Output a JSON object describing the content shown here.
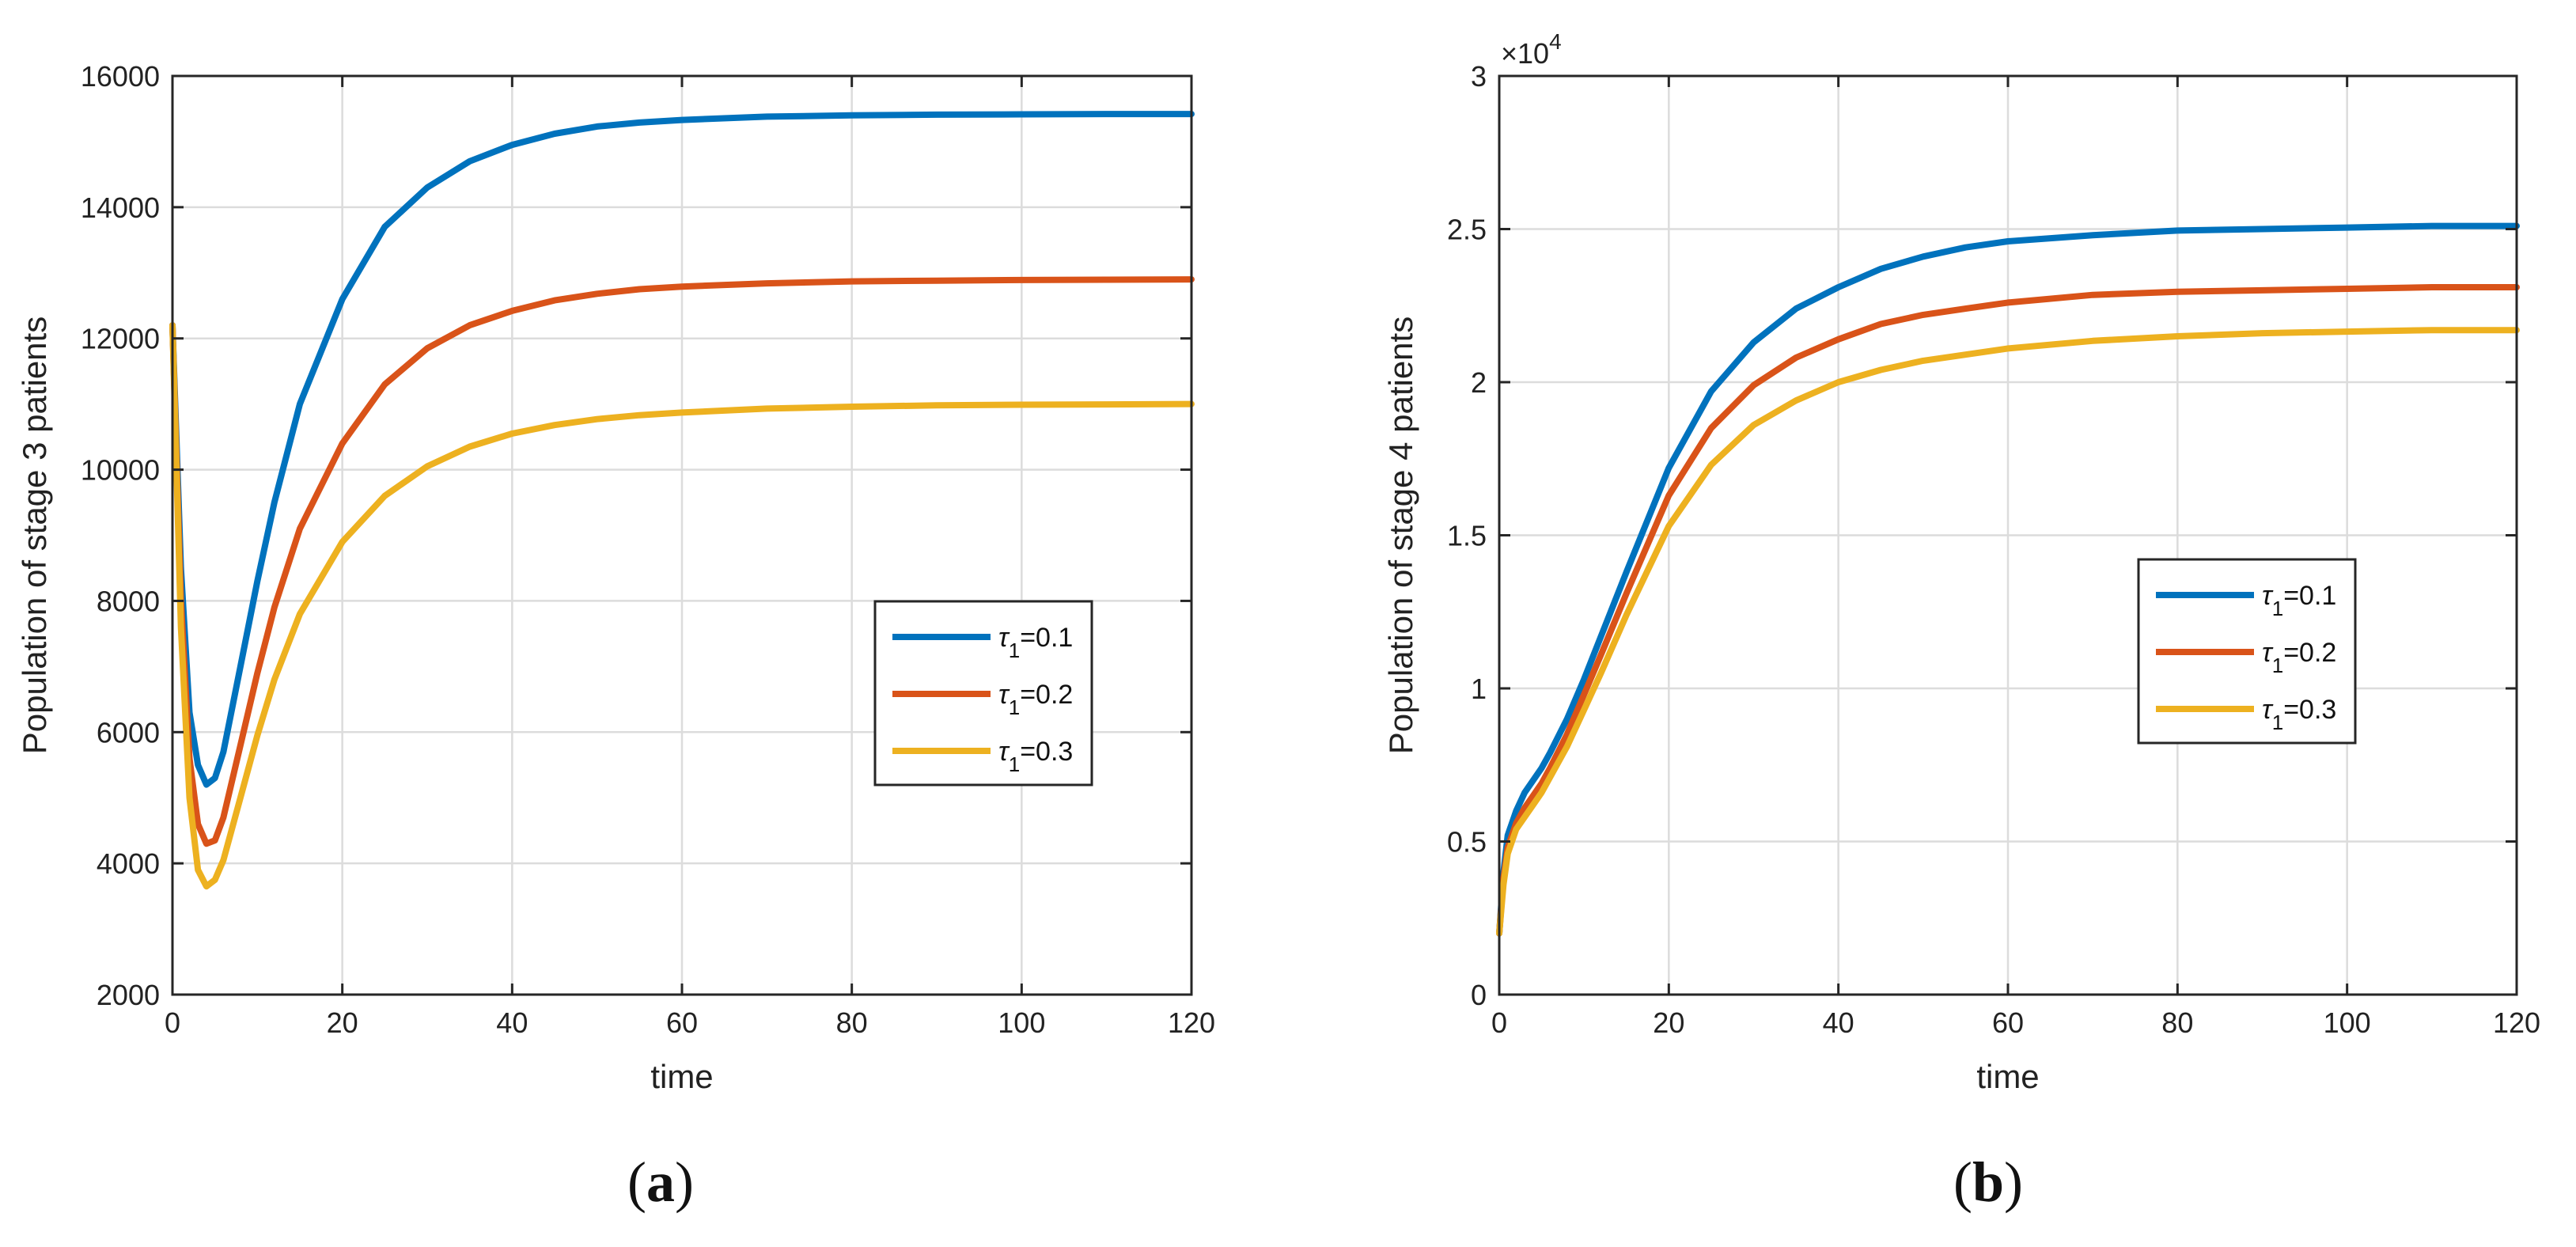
{
  "chart_data": [
    {
      "type": "line",
      "panel_caption": "a",
      "xlabel": "time",
      "ylabel": "Population of stage 3 patients",
      "xlim": [
        0,
        120
      ],
      "ylim": [
        2000,
        16000
      ],
      "xticks": [
        0,
        20,
        40,
        60,
        80,
        100,
        120
      ],
      "yticks": [
        2000,
        4000,
        6000,
        8000,
        10000,
        12000,
        14000,
        16000
      ],
      "grid": true,
      "legend_position": "center-right",
      "series": [
        {
          "name": "τ1=0.1",
          "symbol": "τ",
          "subscript": "1",
          "value_text": "=0.1",
          "color": "#0072BD",
          "x": [
            0,
            1,
            2,
            3,
            4,
            5,
            6,
            8,
            10,
            12,
            15,
            20,
            25,
            30,
            35,
            40,
            45,
            50,
            55,
            60,
            70,
            80,
            90,
            100,
            110,
            120
          ],
          "y": [
            12200,
            8500,
            6300,
            5500,
            5200,
            5300,
            5700,
            7000,
            8300,
            9500,
            11000,
            12600,
            13700,
            14300,
            14700,
            14950,
            15120,
            15230,
            15290,
            15330,
            15380,
            15400,
            15410,
            15415,
            15420,
            15420
          ]
        },
        {
          "name": "τ1=0.2",
          "symbol": "τ",
          "subscript": "1",
          "value_text": "=0.2",
          "color": "#D95319",
          "x": [
            0,
            1,
            2,
            3,
            4,
            5,
            6,
            8,
            10,
            12,
            15,
            20,
            25,
            30,
            35,
            40,
            45,
            50,
            55,
            60,
            70,
            80,
            90,
            100,
            110,
            120
          ],
          "y": [
            12200,
            8000,
            5600,
            4600,
            4300,
            4350,
            4700,
            5800,
            6900,
            7900,
            9100,
            10400,
            11300,
            11850,
            12200,
            12420,
            12580,
            12680,
            12750,
            12790,
            12840,
            12870,
            12880,
            12890,
            12895,
            12900
          ]
        },
        {
          "name": "τ1=0.3",
          "symbol": "τ",
          "subscript": "1",
          "value_text": "=0.3",
          "color": "#EDB120",
          "x": [
            0,
            1,
            2,
            3,
            4,
            5,
            6,
            8,
            10,
            12,
            15,
            20,
            25,
            30,
            35,
            40,
            45,
            50,
            55,
            60,
            70,
            80,
            90,
            100,
            110,
            120
          ],
          "y": [
            12200,
            7600,
            5000,
            3900,
            3650,
            3750,
            4050,
            5000,
            5950,
            6800,
            7800,
            8900,
            9600,
            10050,
            10350,
            10550,
            10680,
            10770,
            10830,
            10870,
            10930,
            10960,
            10980,
            10990,
            10995,
            11000
          ]
        }
      ]
    },
    {
      "type": "line",
      "panel_caption": "b",
      "xlabel": "time",
      "ylabel": "Population of stage 4 patients",
      "axis_multiplier": "×10",
      "axis_multiplier_exponent": "4",
      "xlim": [
        0,
        120
      ],
      "ylim": [
        0,
        3
      ],
      "xticks": [
        0,
        20,
        40,
        60,
        80,
        100,
        120
      ],
      "yticks": [
        0,
        0.5,
        1,
        1.5,
        2,
        2.5,
        3
      ],
      "grid": true,
      "legend_position": "center-right",
      "series": [
        {
          "name": "τ1=0.1",
          "symbol": "τ",
          "subscript": "1",
          "value_text": "=0.1",
          "color": "#0072BD",
          "x": [
            0,
            0.5,
            1,
            2,
            3,
            4,
            5,
            6,
            8,
            10,
            12,
            15,
            20,
            25,
            30,
            35,
            40,
            45,
            50,
            55,
            60,
            70,
            80,
            90,
            100,
            110,
            120
          ],
          "y": [
            0.2,
            0.4,
            0.52,
            0.6,
            0.66,
            0.7,
            0.74,
            0.79,
            0.9,
            1.03,
            1.17,
            1.38,
            1.72,
            1.97,
            2.13,
            2.24,
            2.31,
            2.37,
            2.41,
            2.44,
            2.46,
            2.48,
            2.495,
            2.5,
            2.505,
            2.51,
            2.51
          ]
        },
        {
          "name": "τ1=0.2",
          "symbol": "τ",
          "subscript": "1",
          "value_text": "=0.2",
          "color": "#D95319",
          "x": [
            0,
            0.5,
            1,
            2,
            3,
            4,
            5,
            6,
            8,
            10,
            12,
            15,
            20,
            25,
            30,
            35,
            40,
            45,
            50,
            55,
            60,
            70,
            80,
            90,
            100,
            110,
            120
          ],
          "y": [
            0.2,
            0.38,
            0.48,
            0.56,
            0.61,
            0.65,
            0.69,
            0.74,
            0.85,
            0.98,
            1.11,
            1.31,
            1.63,
            1.85,
            1.99,
            2.08,
            2.14,
            2.19,
            2.22,
            2.24,
            2.26,
            2.285,
            2.295,
            2.3,
            2.305,
            2.31,
            2.31
          ]
        },
        {
          "name": "τ1=0.3",
          "symbol": "τ",
          "subscript": "1",
          "value_text": "=0.3",
          "color": "#EDB120",
          "x": [
            0,
            0.5,
            1,
            2,
            3,
            4,
            5,
            6,
            8,
            10,
            12,
            15,
            20,
            25,
            30,
            35,
            40,
            45,
            50,
            55,
            60,
            70,
            80,
            90,
            100,
            110,
            120
          ],
          "y": [
            0.2,
            0.36,
            0.46,
            0.54,
            0.58,
            0.62,
            0.66,
            0.71,
            0.81,
            0.93,
            1.05,
            1.24,
            1.53,
            1.73,
            1.86,
            1.94,
            2.0,
            2.04,
            2.07,
            2.09,
            2.11,
            2.135,
            2.15,
            2.16,
            2.165,
            2.17,
            2.17
          ]
        }
      ]
    }
  ]
}
